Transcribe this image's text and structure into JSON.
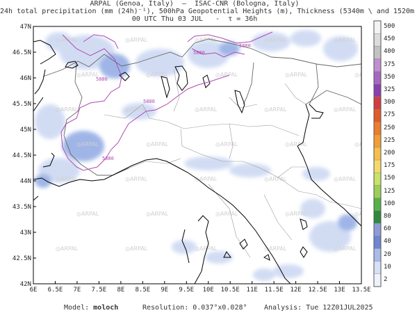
{
  "header": {
    "line1": "ARPAL (Genoa, Italy)  —  ISAC-CNR (Bologna, Italy)",
    "line2": "24h total precipitation (mm (24h)⁻¹), 500hPa Geopotential Heights (m), Thickness (5340m \\ and 1520m /)",
    "line3": "00 UTC Thu 03 JUL   -  τ = 36h"
  },
  "map": {
    "lon_ticks": [
      "6E",
      "6.5E",
      "7E",
      "7.5E",
      "8E",
      "8.5E",
      "9E",
      "9.5E",
      "10E",
      "10.5E",
      "11E",
      "11.5E",
      "12E",
      "12.5E",
      "13E",
      "13.5E"
    ],
    "lat_ticks": [
      "42N",
      "42.5N",
      "43N",
      "43.5N",
      "44N",
      "44.5N",
      "45N",
      "45.5N",
      "46N",
      "46.5N",
      "47N"
    ],
    "contour_label": "5880",
    "watermark": "ARPAL",
    "colors": {
      "coast": "#000000",
      "border": "#666666",
      "contour": "#b04ab0",
      "precip_light": "#c9d6f2",
      "precip_mid": "#8fa9e3"
    }
  },
  "colorbar": {
    "levels": [
      "500",
      "450",
      "400",
      "375",
      "350",
      "325",
      "300",
      "275",
      "250",
      "225",
      "200",
      "175",
      "150",
      "125",
      "100",
      "80",
      "60",
      "40",
      "20",
      "10",
      "2"
    ],
    "colors": [
      "#f4f4f4",
      "#dcdcdc",
      "#c2c2c2",
      "#c08fd0",
      "#a568c0",
      "#8a3fae",
      "#d23d3d",
      "#e05a2a",
      "#ec7d2a",
      "#f29d36",
      "#f7be4a",
      "#f7d86a",
      "#c9e26a",
      "#9ccf55",
      "#58b04a",
      "#2e8a3a",
      "#8d9cd8",
      "#6f86d4",
      "#a9bbea",
      "#d7e0f5",
      "#eef2fb"
    ]
  },
  "footer": {
    "model_label": "Model:",
    "model_name": "moloch",
    "resolution": "Resolution: 0.037°x0.028°",
    "analysis": "Analysis: Tue 12Z01JUL2025"
  }
}
